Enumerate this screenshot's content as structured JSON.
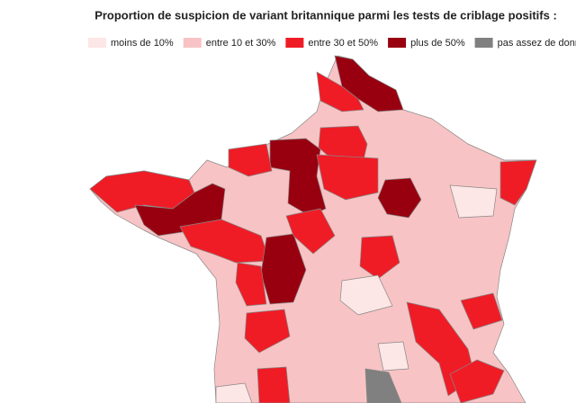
{
  "title": "Proportion de suspicion de variant britannique parmi les tests de criblage positifs :",
  "legend": [
    {
      "label": "moins de 10%",
      "color": "#fde6e6"
    },
    {
      "label": "entre 10 et 30%",
      "color": "#f8c3c4"
    },
    {
      "label": "entre 30 et 50%",
      "color": "#ef1c26"
    },
    {
      "label": "plus de 50%",
      "color": "#980010"
    },
    {
      "label": "pas assez de données",
      "color": "#808080"
    }
  ]
}
